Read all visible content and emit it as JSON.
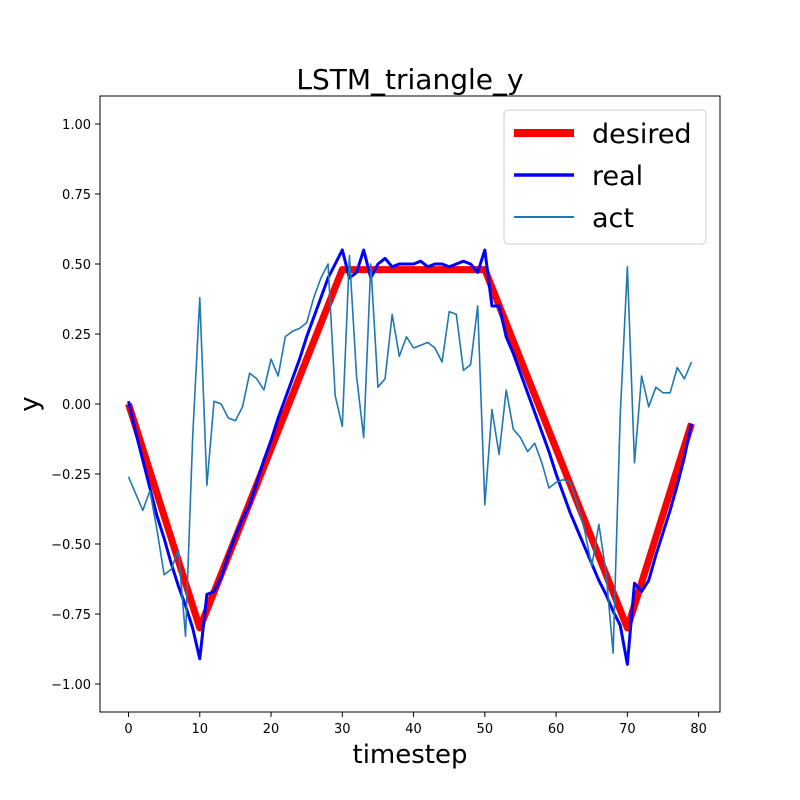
{
  "chart_data": {
    "type": "line",
    "title": "LSTM_triangle_y",
    "xlabel": "timestep",
    "ylabel": "y",
    "xlim": [
      -4,
      83
    ],
    "ylim": [
      -1.1,
      1.1
    ],
    "xticks": [
      0,
      10,
      20,
      30,
      40,
      50,
      60,
      70,
      80
    ],
    "yticks": [
      -1.0,
      -0.75,
      -0.5,
      -0.25,
      0.0,
      0.25,
      0.5,
      0.75,
      1.0
    ],
    "xtick_labels": [
      "0",
      "10",
      "20",
      "30",
      "40",
      "50",
      "60",
      "70",
      "80"
    ],
    "ytick_labels": [
      "−1.00",
      "−0.75",
      "−0.50",
      "−0.25",
      "0.00",
      "0.25",
      "0.50",
      "0.75",
      "1.00"
    ],
    "grid": false,
    "legend_position": "top-right",
    "series": [
      {
        "name": "desired",
        "color": "#ff0000",
        "style": "thick",
        "x": [
          0,
          10,
          30,
          50,
          70,
          79
        ],
        "y": [
          0.0,
          -0.8,
          0.48,
          0.48,
          -0.8,
          -0.07
        ]
      },
      {
        "name": "real",
        "color": "#0000ff",
        "style": "medium",
        "x": [
          0,
          1,
          2,
          3,
          4,
          5,
          6,
          7,
          8,
          9,
          10,
          11,
          12,
          13,
          14,
          15,
          16,
          17,
          18,
          19,
          20,
          21,
          22,
          23,
          24,
          25,
          26,
          27,
          28,
          29,
          30,
          31,
          32,
          33,
          34,
          35,
          36,
          37,
          38,
          39,
          40,
          41,
          42,
          43,
          44,
          45,
          46,
          47,
          48,
          49,
          50,
          51,
          52,
          53,
          54,
          55,
          56,
          57,
          58,
          59,
          60,
          61,
          62,
          63,
          64,
          65,
          66,
          67,
          68,
          69,
          70,
          71,
          72,
          73,
          74,
          75,
          76,
          77,
          78,
          79
        ],
        "y": [
          0.01,
          -0.1,
          -0.2,
          -0.3,
          -0.4,
          -0.48,
          -0.57,
          -0.65,
          -0.72,
          -0.8,
          -0.91,
          -0.68,
          -0.67,
          -0.62,
          -0.54,
          -0.47,
          -0.41,
          -0.36,
          -0.28,
          -0.2,
          -0.13,
          -0.05,
          0.02,
          0.09,
          0.16,
          0.24,
          0.31,
          0.38,
          0.45,
          0.5,
          0.55,
          0.45,
          0.47,
          0.55,
          0.45,
          0.5,
          0.52,
          0.49,
          0.5,
          0.5,
          0.5,
          0.51,
          0.49,
          0.5,
          0.5,
          0.49,
          0.5,
          0.51,
          0.5,
          0.47,
          0.55,
          0.35,
          0.35,
          0.24,
          0.18,
          0.11,
          0.04,
          -0.03,
          -0.1,
          -0.17,
          -0.25,
          -0.32,
          -0.39,
          -0.45,
          -0.51,
          -0.57,
          -0.63,
          -0.68,
          -0.74,
          -0.79,
          -0.93,
          -0.64,
          -0.67,
          -0.63,
          -0.54,
          -0.46,
          -0.38,
          -0.29,
          -0.19,
          -0.07
        ]
      },
      {
        "name": "act",
        "color": "#1f77b4",
        "style": "thin",
        "x": [
          0,
          1,
          2,
          3,
          4,
          5,
          6,
          7,
          8,
          9,
          10,
          11,
          12,
          13,
          14,
          15,
          16,
          17,
          18,
          19,
          20,
          21,
          22,
          23,
          24,
          25,
          26,
          27,
          28,
          29,
          30,
          31,
          32,
          33,
          34,
          35,
          36,
          37,
          38,
          39,
          40,
          41,
          42,
          43,
          44,
          45,
          46,
          47,
          48,
          49,
          50,
          51,
          52,
          53,
          54,
          55,
          56,
          57,
          58,
          59,
          60,
          61,
          62,
          63,
          64,
          65,
          66,
          67,
          68,
          69,
          70,
          71,
          72,
          73,
          74,
          75,
          76,
          77,
          78,
          79
        ],
        "y": [
          -0.26,
          -0.32,
          -0.38,
          -0.31,
          -0.45,
          -0.61,
          -0.59,
          -0.52,
          -0.83,
          -0.12,
          0.38,
          -0.29,
          0.01,
          0.0,
          -0.05,
          -0.06,
          -0.01,
          0.11,
          0.09,
          0.05,
          0.16,
          0.1,
          0.24,
          0.26,
          0.27,
          0.29,
          0.38,
          0.45,
          0.5,
          0.03,
          -0.08,
          0.53,
          0.1,
          -0.12,
          0.5,
          0.06,
          0.09,
          0.32,
          0.17,
          0.24,
          0.2,
          0.21,
          0.22,
          0.2,
          0.15,
          0.33,
          0.32,
          0.12,
          0.14,
          0.35,
          -0.36,
          -0.02,
          -0.18,
          0.05,
          -0.09,
          -0.12,
          -0.17,
          -0.14,
          -0.21,
          -0.3,
          -0.28,
          -0.27,
          -0.28,
          -0.36,
          -0.45,
          -0.58,
          -0.43,
          -0.6,
          -0.89,
          -0.04,
          0.49,
          -0.21,
          0.1,
          -0.01,
          0.06,
          0.04,
          0.04,
          0.13,
          0.09,
          0.15
        ]
      }
    ]
  }
}
